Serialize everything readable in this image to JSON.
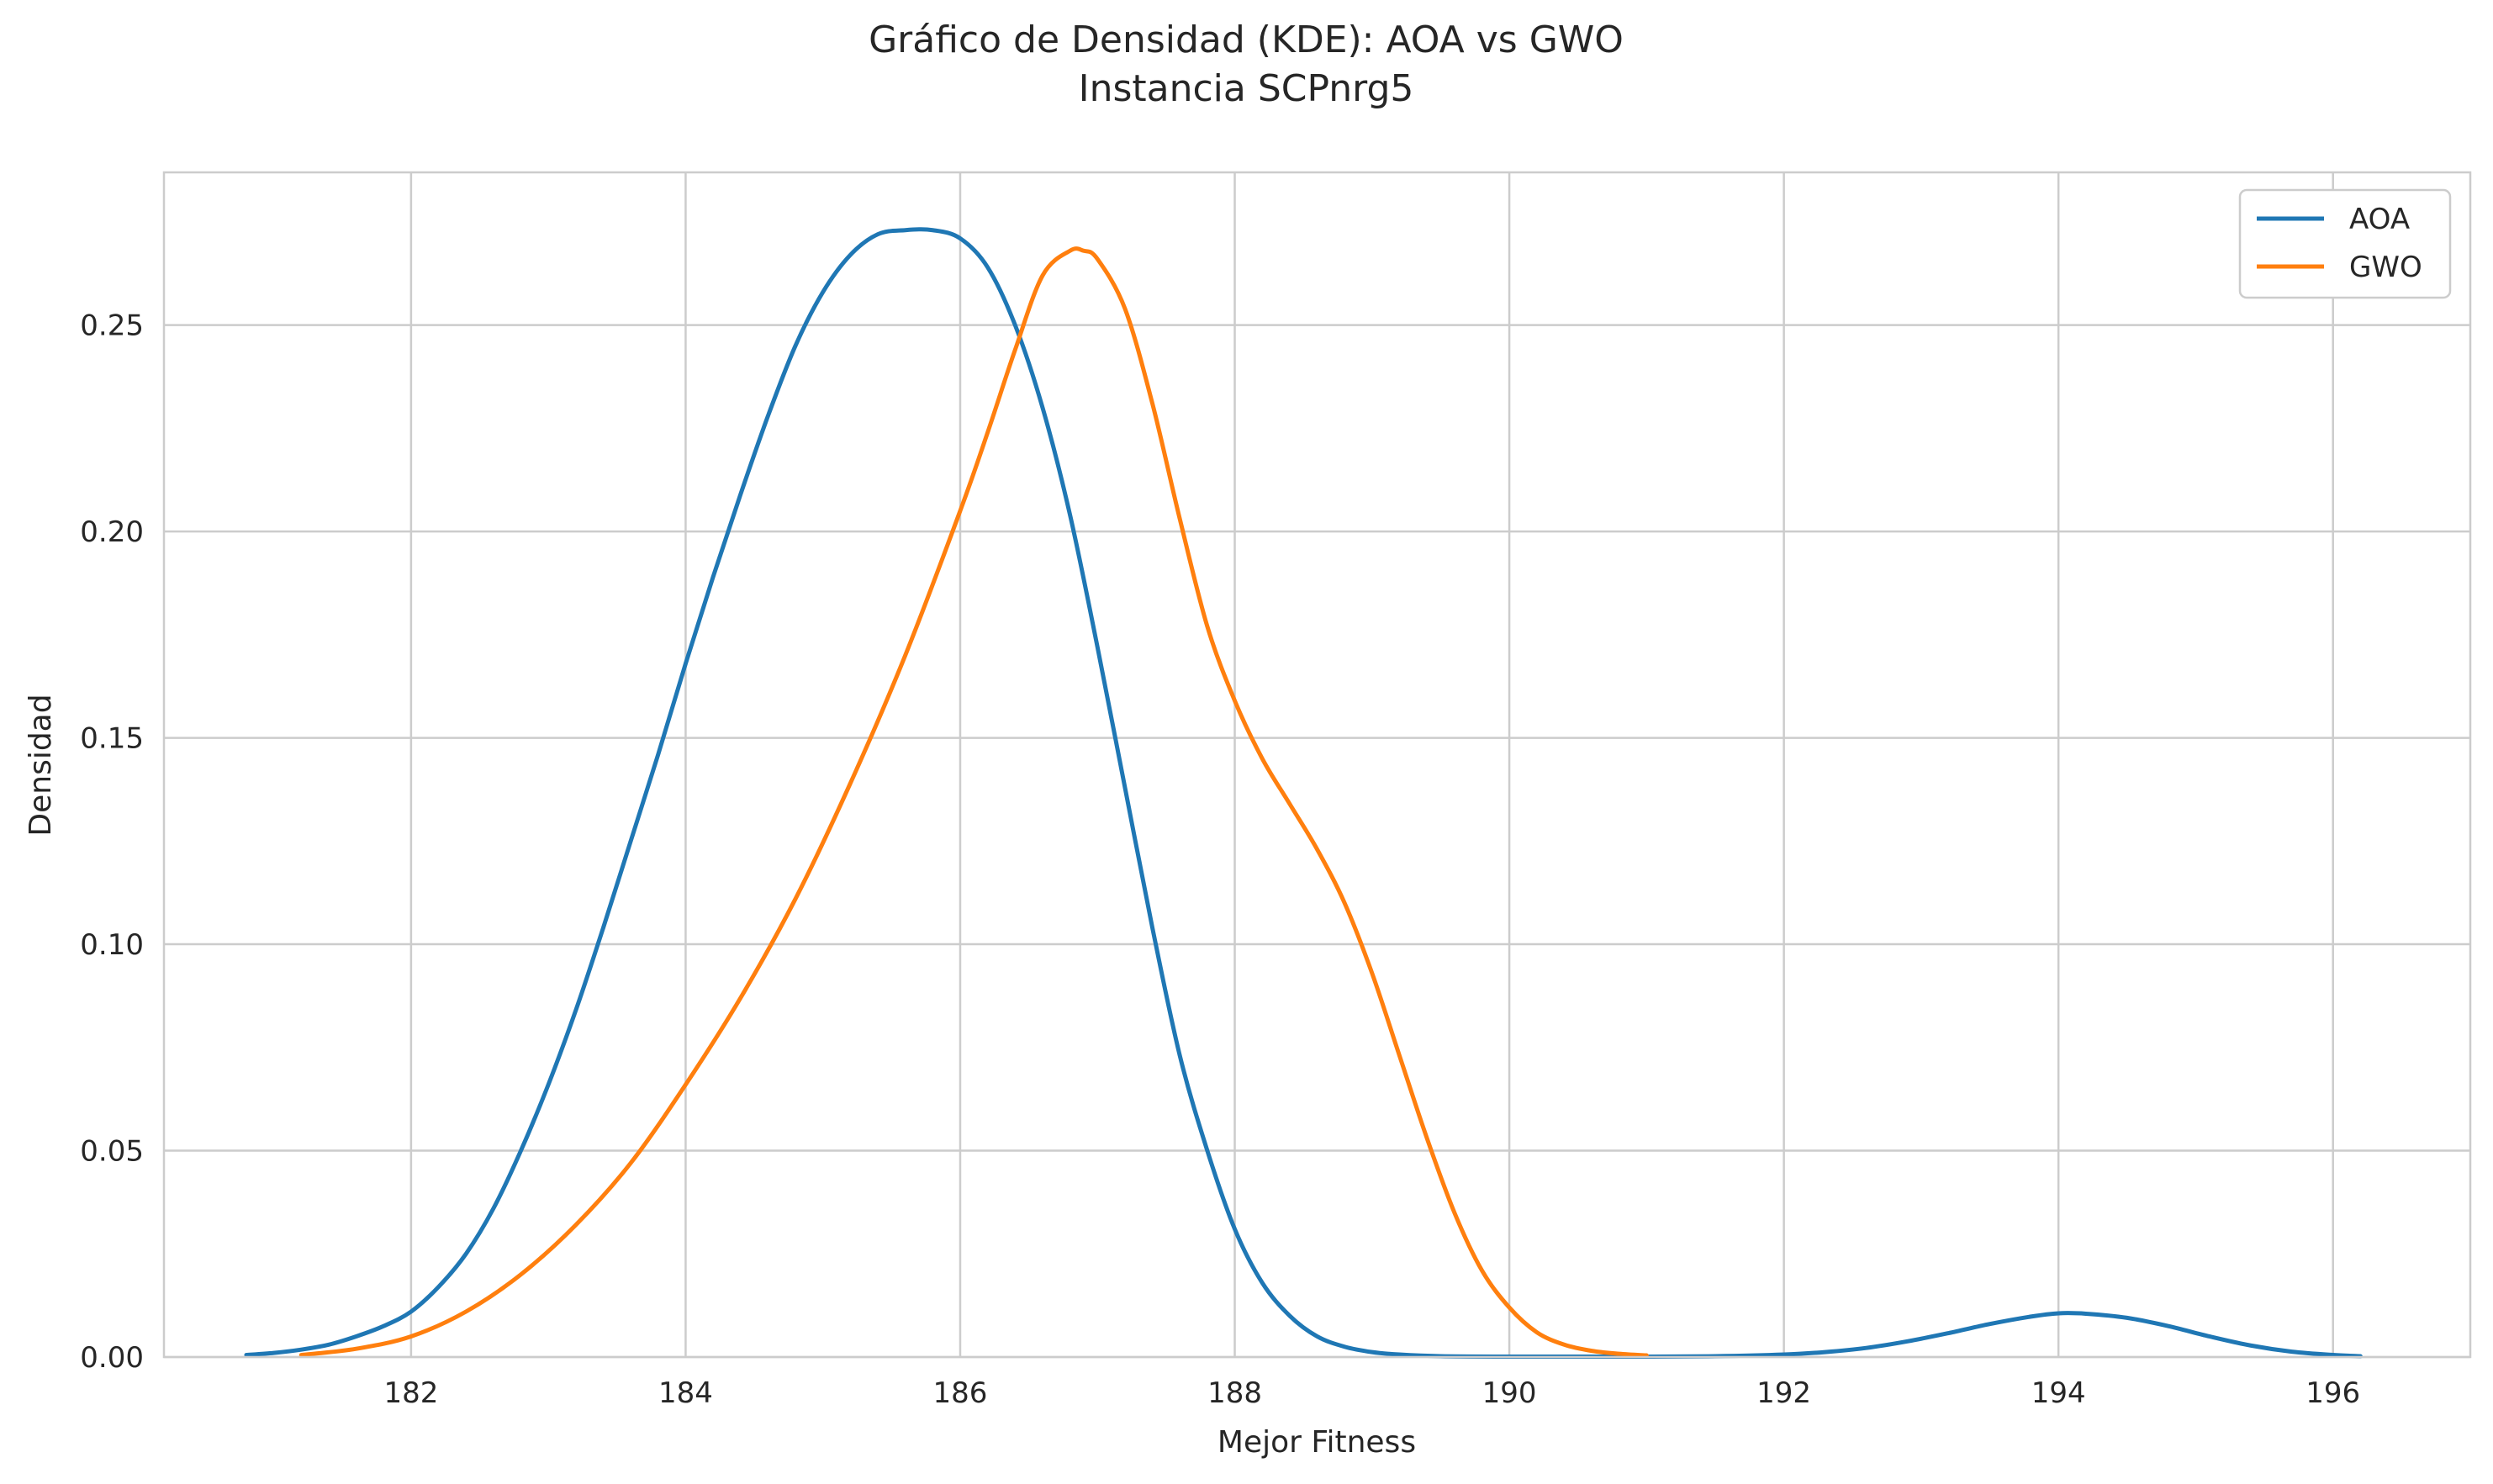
{
  "chart_data": {
    "type": "line",
    "title_lines": [
      "Gráfico de Densidad (KDE): AOA vs GWO",
      "Instancia SCPnrg5"
    ],
    "xlabel": "Mejor Fitness",
    "ylabel": "Densidad",
    "xlim": [
      180.2,
      197.0
    ],
    "ylim": [
      0.0,
      0.287
    ],
    "xticks": [
      182,
      184,
      186,
      188,
      190,
      192,
      194,
      196
    ],
    "xtick_labels": [
      "182",
      "184",
      "186",
      "188",
      "190",
      "192",
      "194",
      "196"
    ],
    "yticks": [
      0.0,
      0.05,
      0.1,
      0.15,
      0.2,
      0.25
    ],
    "ytick_labels": [
      "0.00",
      "0.05",
      "0.10",
      "0.15",
      "0.20",
      "0.25"
    ],
    "grid": true,
    "legend_position": "top-right",
    "series": [
      {
        "name": "AOA",
        "color": "#1f77b4",
        "x": [
          180.8,
          181.0,
          181.2,
          181.4,
          181.6,
          181.8,
          182.0,
          182.2,
          182.4,
          182.6,
          182.8,
          183.0,
          183.2,
          183.4,
          183.6,
          183.8,
          184.0,
          184.2,
          184.4,
          184.6,
          184.8,
          185.0,
          185.2,
          185.4,
          185.6,
          185.8,
          186.0,
          186.2,
          186.4,
          186.6,
          186.8,
          187.0,
          187.2,
          187.4,
          187.6,
          187.8,
          188.0,
          188.2,
          188.4,
          188.6,
          188.8,
          189.0,
          189.2,
          189.5,
          190.0,
          190.5,
          191.0,
          191.5,
          192.0,
          192.3,
          192.6,
          192.9,
          193.2,
          193.5,
          193.8,
          194.0,
          194.2,
          194.5,
          194.8,
          195.1,
          195.4,
          195.7,
          196.0,
          196.2
        ],
        "values": [
          0.0005,
          0.001,
          0.0018,
          0.003,
          0.005,
          0.0075,
          0.011,
          0.017,
          0.025,
          0.036,
          0.05,
          0.066,
          0.084,
          0.104,
          0.125,
          0.146,
          0.168,
          0.189,
          0.209,
          0.228,
          0.245,
          0.258,
          0.267,
          0.272,
          0.273,
          0.273,
          0.271,
          0.264,
          0.25,
          0.23,
          0.204,
          0.172,
          0.138,
          0.104,
          0.073,
          0.05,
          0.031,
          0.018,
          0.01,
          0.005,
          0.0025,
          0.0012,
          0.0006,
          0.0002,
          0.0001,
          0.0001,
          0.0001,
          0.0002,
          0.0006,
          0.0012,
          0.0022,
          0.0038,
          0.0058,
          0.008,
          0.0098,
          0.0106,
          0.0105,
          0.0095,
          0.0075,
          0.005,
          0.0028,
          0.0013,
          0.0005,
          0.0002
        ]
      },
      {
        "name": "GWO",
        "color": "#ff7f0e",
        "x": [
          181.2,
          181.6,
          182.0,
          182.4,
          182.8,
          183.2,
          183.6,
          184.0,
          184.4,
          184.8,
          185.2,
          185.6,
          186.0,
          186.2,
          186.4,
          186.6,
          186.8,
          186.9,
          187.0,
          187.2,
          187.4,
          187.6,
          187.8,
          188.0,
          188.2,
          188.4,
          188.6,
          188.8,
          189.0,
          189.2,
          189.4,
          189.6,
          189.8,
          190.0,
          190.2,
          190.4,
          190.6,
          190.8,
          191.0
        ],
        "values": [
          0.0005,
          0.002,
          0.005,
          0.011,
          0.02,
          0.032,
          0.047,
          0.066,
          0.087,
          0.111,
          0.139,
          0.17,
          0.205,
          0.224,
          0.244,
          0.262,
          0.268,
          0.268,
          0.266,
          0.254,
          0.231,
          0.203,
          0.177,
          0.159,
          0.145,
          0.134,
          0.123,
          0.11,
          0.093,
          0.073,
          0.053,
          0.035,
          0.021,
          0.012,
          0.006,
          0.003,
          0.0015,
          0.0008,
          0.0004
        ]
      }
    ]
  }
}
